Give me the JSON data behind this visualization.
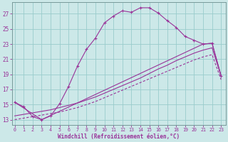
{
  "xlabel": "Windchill (Refroidissement éolien,°C)",
  "bg_color": "#cce8e8",
  "line_color": "#993399",
  "grid_color": "#99cccc",
  "x_ticks": [
    0,
    1,
    2,
    3,
    4,
    5,
    6,
    7,
    8,
    9,
    10,
    11,
    12,
    13,
    14,
    15,
    16,
    17,
    18,
    19,
    20,
    21,
    22,
    23
  ],
  "y_ticks": [
    13,
    15,
    17,
    19,
    21,
    23,
    25,
    27
  ],
  "xlim": [
    -0.3,
    23.5
  ],
  "ylim": [
    12.3,
    28.5
  ],
  "series1_x": [
    0,
    1,
    2,
    3,
    4,
    5,
    6,
    7,
    8,
    9,
    10,
    11,
    12,
    13,
    14,
    15,
    16,
    17,
    18,
    19,
    20,
    21,
    22,
    23
  ],
  "series1_y": [
    15.3,
    14.7,
    13.4,
    13.0,
    13.5,
    15.1,
    17.4,
    20.1,
    22.3,
    23.8,
    25.8,
    26.7,
    27.4,
    27.2,
    27.8,
    27.8,
    27.1,
    26.1,
    25.2,
    24.0,
    23.5,
    23.0,
    23.1,
    18.8
  ],
  "series2_x": [
    0,
    3,
    21,
    22,
    23
  ],
  "series2_y": [
    15.3,
    13.0,
    23.0,
    23.1,
    18.8
  ],
  "series3_x": [
    0,
    1,
    2,
    3,
    4,
    5,
    6,
    7,
    8,
    9,
    10,
    11,
    12,
    13,
    14,
    15,
    16,
    17,
    18,
    19,
    20,
    21,
    22,
    23
  ],
  "series3_y": [
    13.5,
    13.7,
    13.9,
    14.1,
    14.3,
    14.6,
    14.9,
    15.2,
    15.6,
    16.0,
    16.5,
    17.0,
    17.5,
    18.0,
    18.5,
    19.1,
    19.7,
    20.2,
    20.8,
    21.3,
    21.8,
    22.2,
    22.5,
    18.8
  ],
  "series4_x": [
    0,
    1,
    2,
    3,
    4,
    5,
    6,
    7,
    8,
    9,
    10,
    11,
    12,
    13,
    14,
    15,
    16,
    17,
    18,
    19,
    20,
    21,
    22,
    23
  ],
  "series4_y": [
    13.0,
    13.2,
    13.4,
    13.6,
    13.8,
    14.0,
    14.3,
    14.6,
    15.0,
    15.4,
    15.9,
    16.4,
    16.9,
    17.4,
    17.9,
    18.4,
    18.9,
    19.4,
    19.9,
    20.4,
    20.9,
    21.3,
    21.6,
    18.3
  ],
  "font_color": "#993399"
}
